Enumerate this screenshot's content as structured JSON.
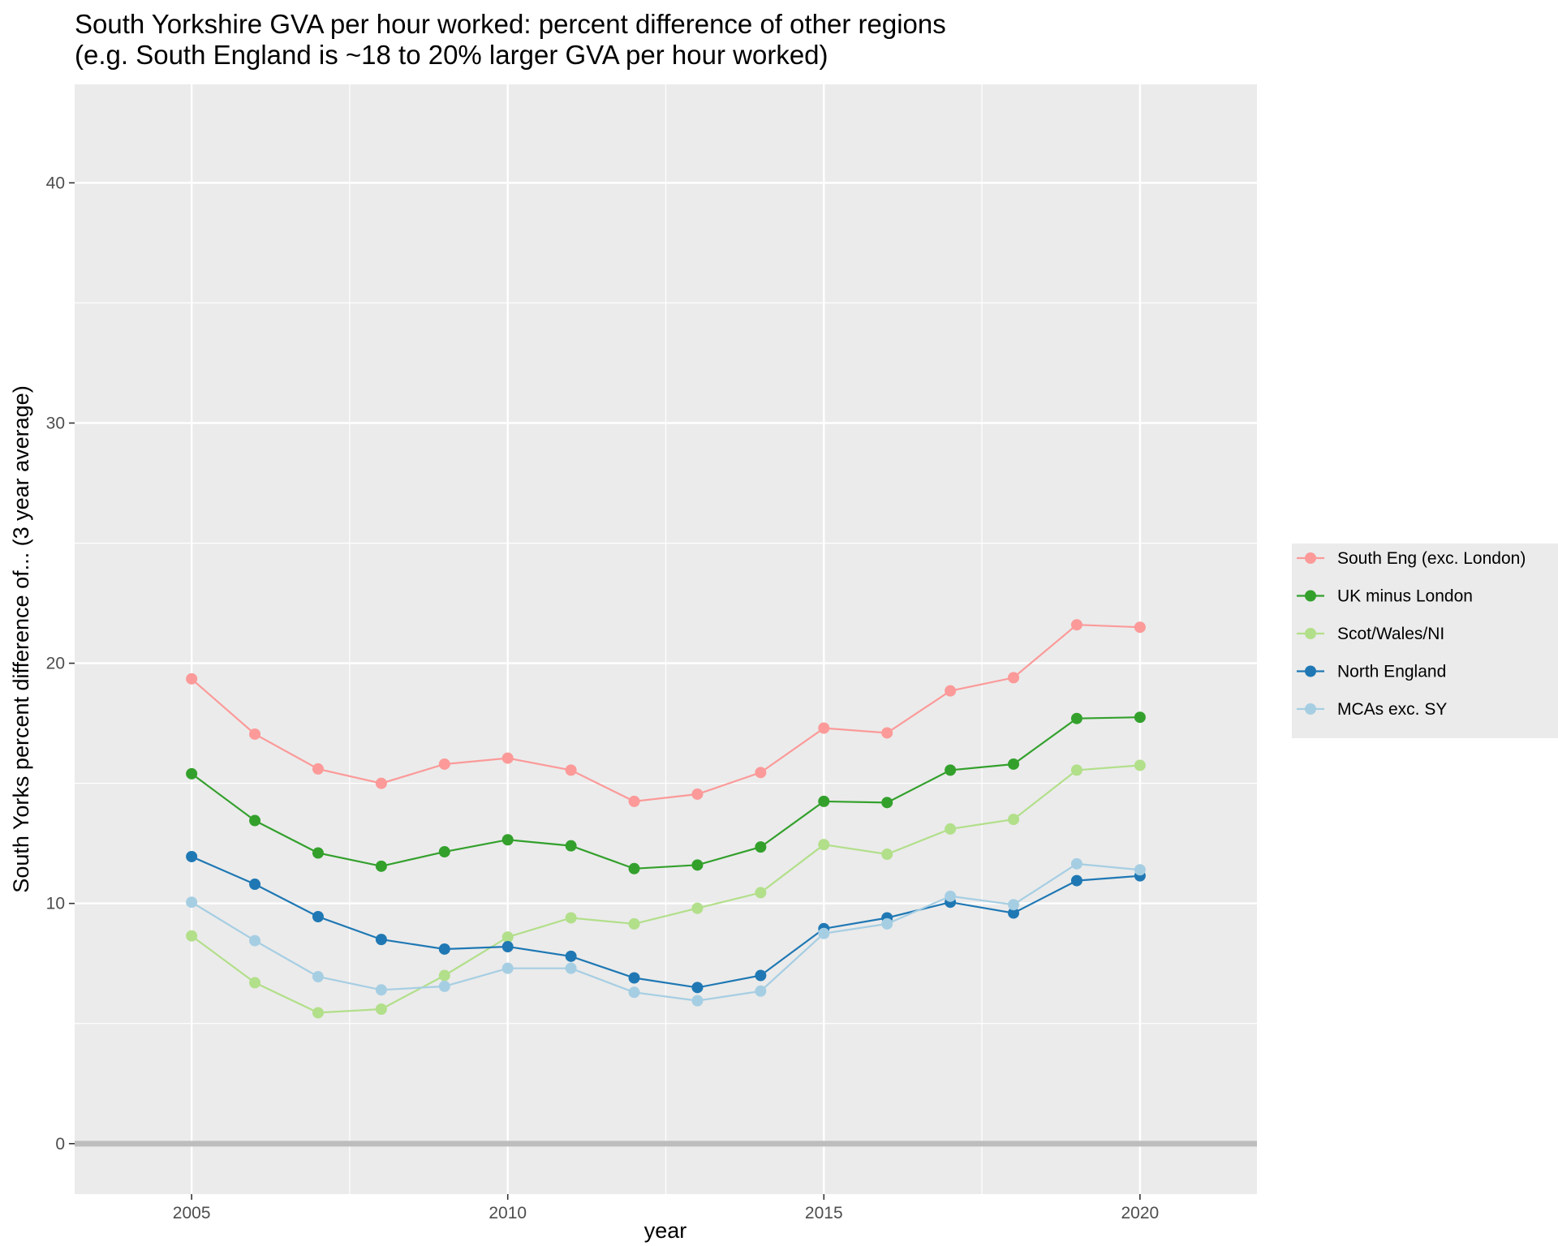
{
  "chart_data": {
    "type": "line",
    "title": "South Yorkshire GVA per hour worked: percent difference of other regions",
    "subtitle": "(e.g. South England is ~18 to 20% larger GVA per hour worked)",
    "xlabel": "year",
    "ylabel": "South Yorks percent difference of... (3 year average)",
    "xlim": [
      2003.15,
      21.85
    ],
    "ylim": [
      -2.1,
      44.1
    ],
    "x_ticks": [
      2005,
      2010,
      2015,
      2020
    ],
    "x_tick_labels": [
      "2005",
      "2010",
      "2015",
      "2020"
    ],
    "y_ticks": [
      0,
      10,
      20,
      30,
      40
    ],
    "y_tick_labels": [
      "0",
      "10",
      "20",
      "30",
      "40"
    ],
    "grid": true,
    "reference_line": 0,
    "legend_position": "right",
    "x": [
      2005,
      2006,
      2007,
      2008,
      2009,
      2010,
      2011,
      2012,
      2013,
      2014,
      2015,
      2016,
      2017,
      2018,
      2019,
      2020
    ],
    "series": [
      {
        "name": "South Eng (exc. London)",
        "color": "#fb9a99",
        "values": [
          19.35,
          17.05,
          15.6,
          15.0,
          15.8,
          16.05,
          15.55,
          14.25,
          14.55,
          15.45,
          17.3,
          17.1,
          18.85,
          19.4,
          21.6,
          21.5
        ]
      },
      {
        "name": "UK minus London",
        "color": "#33a02c",
        "values": [
          15.4,
          13.45,
          12.1,
          11.55,
          12.15,
          12.65,
          12.4,
          11.45,
          11.6,
          12.35,
          14.25,
          14.2,
          15.55,
          15.8,
          17.7,
          17.75
        ]
      },
      {
        "name": "Scot/Wales/NI",
        "color": "#b2df8a",
        "values": [
          8.65,
          6.7,
          5.45,
          5.6,
          7.0,
          8.6,
          9.4,
          9.15,
          9.8,
          10.45,
          12.45,
          12.05,
          13.1,
          13.5,
          15.55,
          15.75
        ]
      },
      {
        "name": "North England",
        "color": "#1f78b4",
        "values": [
          11.95,
          10.8,
          9.45,
          8.5,
          8.1,
          8.2,
          7.8,
          6.9,
          6.5,
          7.0,
          8.95,
          9.4,
          10.05,
          9.6,
          10.95,
          11.15
        ]
      },
      {
        "name": "MCAs exc. SY",
        "color": "#a6cee3",
        "values": [
          10.05,
          8.45,
          6.95,
          6.4,
          6.55,
          7.3,
          7.3,
          6.3,
          5.95,
          6.35,
          8.75,
          9.15,
          10.3,
          9.95,
          11.65,
          11.4
        ]
      }
    ]
  }
}
